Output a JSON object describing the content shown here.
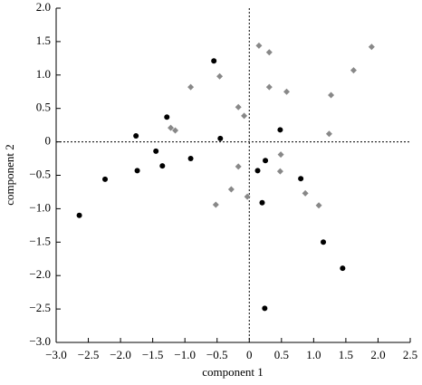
{
  "chart_data": {
    "type": "scatter",
    "x_label": "component 1",
    "y_label": "component 2",
    "xlim": [
      -3.0,
      2.5
    ],
    "ylim": [
      -3.0,
      2.0
    ],
    "xticks": [
      {
        "value": -3.0,
        "label": "−3.0"
      },
      {
        "value": -2.5,
        "label": "−2.5"
      },
      {
        "value": -2.0,
        "label": "−2.0"
      },
      {
        "value": -1.5,
        "label": "−1.5"
      },
      {
        "value": -1.0,
        "label": "−1.0"
      },
      {
        "value": -0.5,
        "label": "−0.5"
      },
      0,
      0.5,
      {
        "value": 1.0,
        "label": "1.0"
      },
      1.5,
      {
        "value": 2.0,
        "label": "2.0"
      },
      2.5
    ],
    "yticks": [
      {
        "value": -3.0,
        "label": "−3.0"
      },
      {
        "value": -2.5,
        "label": "−2.5"
      },
      {
        "value": -2.0,
        "label": "−2.0"
      },
      {
        "value": -1.5,
        "label": "−1.5"
      },
      {
        "value": -1.0,
        "label": "−1.0"
      },
      {
        "value": -0.5,
        "label": "−0.5"
      },
      0,
      0.5,
      {
        "value": 1.0,
        "label": "1.0"
      },
      1.5,
      {
        "value": 2.0,
        "label": "2.0"
      }
    ],
    "zero_lines": true,
    "series": [
      {
        "marker": "circle",
        "color": "#000000",
        "x": [
          -2.64,
          -2.24,
          -1.76,
          -1.74,
          -1.45,
          -1.35,
          -1.28,
          -0.91,
          -0.55,
          -0.45,
          0.13,
          0.2,
          0.25,
          0.48,
          0.24,
          0.8,
          1.15,
          1.45
        ],
        "values": [
          -1.1,
          -0.56,
          0.09,
          -0.43,
          -0.14,
          -0.36,
          0.37,
          -0.25,
          1.21,
          0.05,
          -0.43,
          -0.91,
          -0.28,
          0.18,
          -2.49,
          -0.55,
          -1.5,
          -1.89
        ]
      },
      {
        "marker": "diamond",
        "color": "#888888",
        "x": [
          -0.91,
          -0.46,
          -1.22,
          -1.15,
          -0.17,
          -0.08,
          -0.17,
          -0.28,
          -0.52,
          -0.03,
          0.15,
          0.31,
          0.31,
          0.58,
          0.49,
          0.48,
          0.87,
          1.08,
          1.24,
          1.27,
          1.62,
          1.9
        ],
        "values": [
          0.82,
          0.98,
          0.21,
          0.17,
          0.52,
          0.39,
          -0.37,
          -0.71,
          -0.94,
          -0.82,
          1.44,
          1.34,
          0.82,
          0.75,
          -0.19,
          -0.44,
          -0.77,
          -0.95,
          0.12,
          0.7,
          1.07,
          1.42
        ]
      }
    ]
  }
}
